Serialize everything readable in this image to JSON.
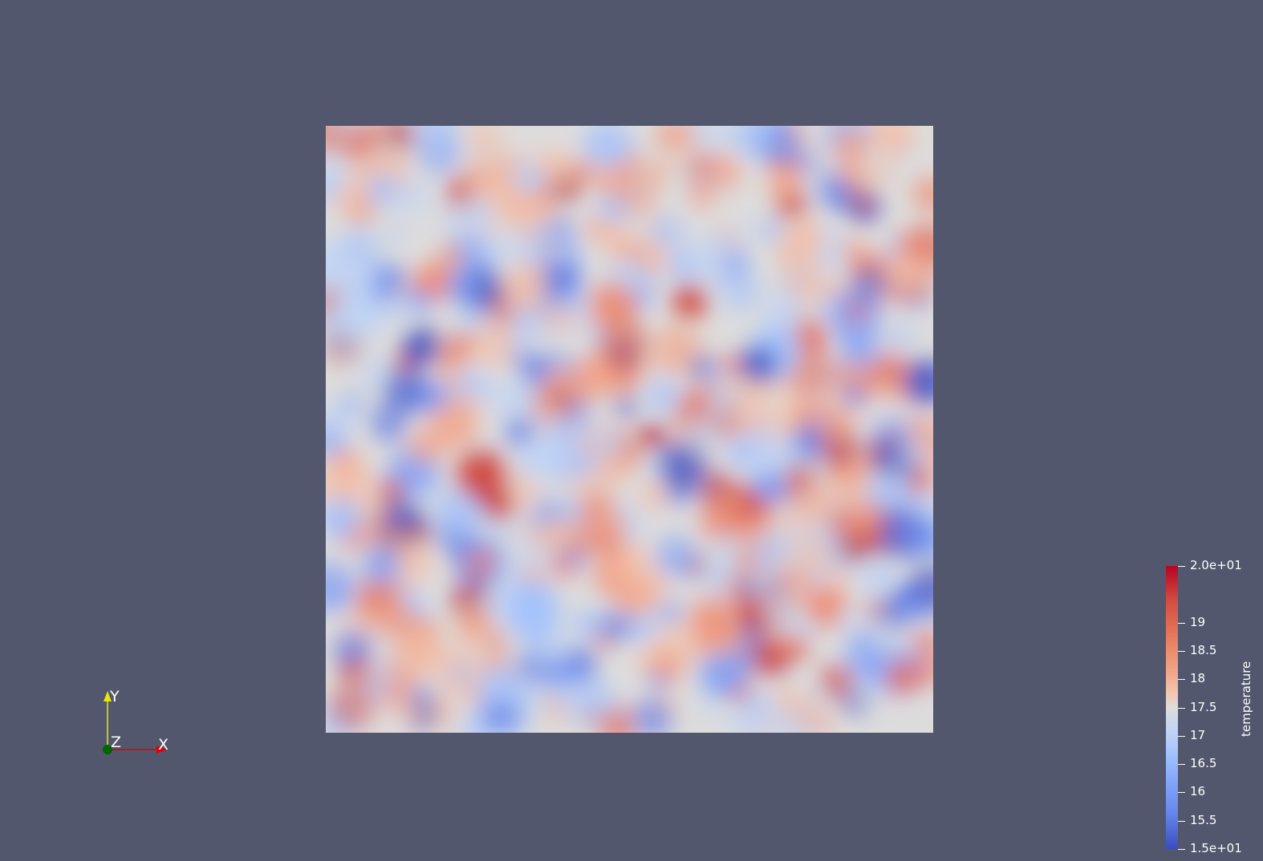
{
  "render_view": {
    "background_color": "#52576e",
    "scalar_field": {
      "array_name": "temperature",
      "range": [
        15,
        20
      ],
      "colormap": "Cool to Warm"
    }
  },
  "orientation_axes": {
    "x_label": "X",
    "y_label": "Y",
    "z_label": "Z",
    "x_color": "#e00000",
    "y_color": "#e8e800",
    "z_color": "#006400"
  },
  "colorbar": {
    "title": "temperature",
    "ticks": [
      {
        "value": 20,
        "label": "2.0e+01"
      },
      {
        "value": 19,
        "label": "19"
      },
      {
        "value": 18.5,
        "label": "18.5"
      },
      {
        "value": 18,
        "label": "18"
      },
      {
        "value": 17.5,
        "label": "17.5"
      },
      {
        "value": 17,
        "label": "17"
      },
      {
        "value": 16.5,
        "label": "16.5"
      },
      {
        "value": 16,
        "label": "16"
      },
      {
        "value": 15.5,
        "label": "15.5"
      },
      {
        "value": 15,
        "label": "1.5e+01"
      }
    ]
  }
}
